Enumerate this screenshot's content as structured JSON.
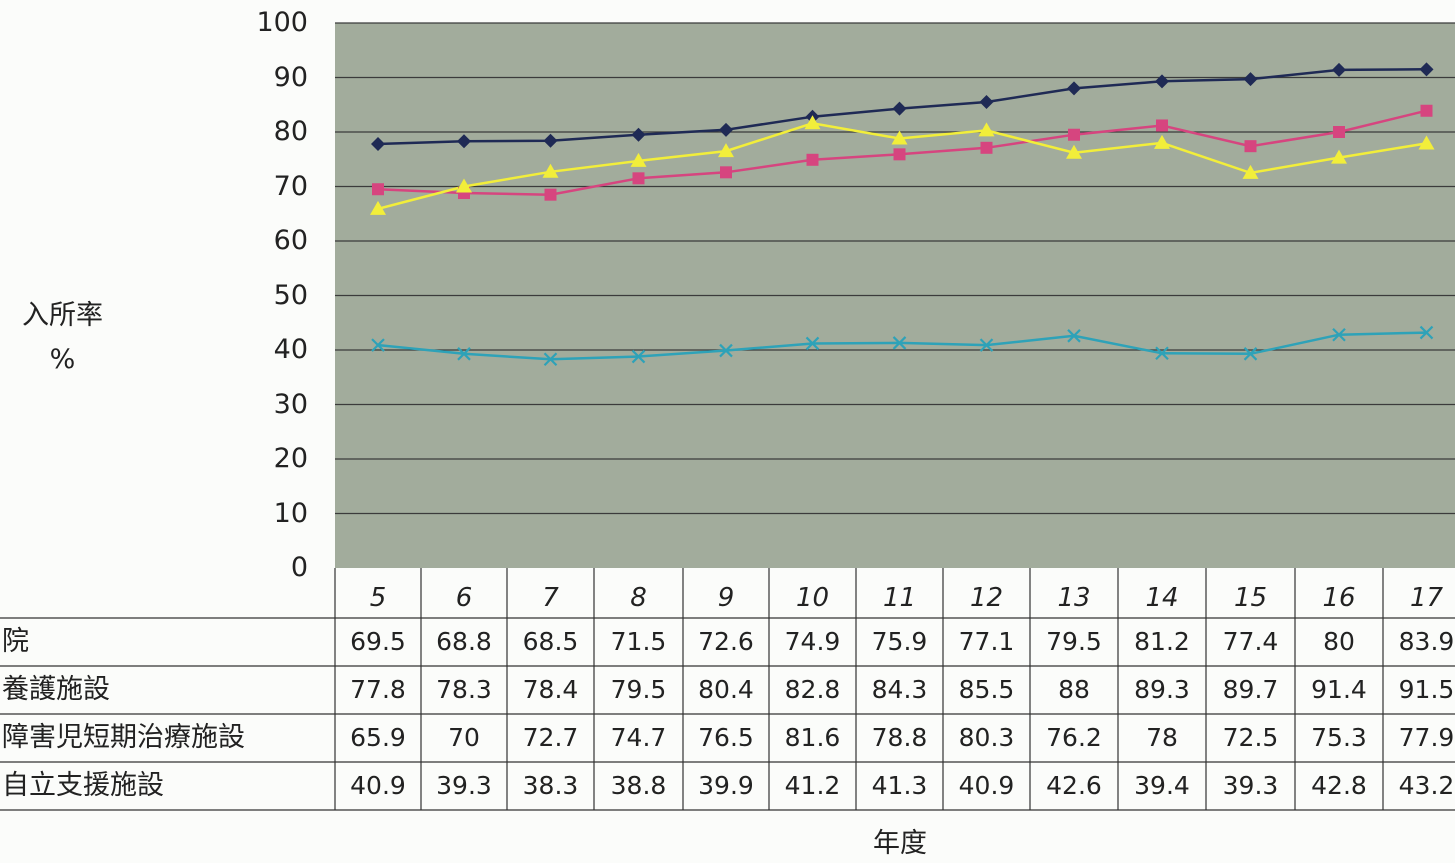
{
  "chart_data": {
    "type": "line",
    "ylabel": [
      "入所率",
      "%"
    ],
    "xlabel": "年度",
    "ylim": [
      0,
      100
    ],
    "yticks": [
      0,
      10,
      20,
      30,
      40,
      50,
      60,
      70,
      80,
      90,
      100
    ],
    "categories": [
      "5",
      "6",
      "7",
      "8",
      "9",
      "10",
      "11",
      "12",
      "13",
      "14",
      "15",
      "16",
      "17"
    ],
    "grid": true,
    "series": [
      {
        "name": "院",
        "color": "#d6457f",
        "marker": "square",
        "values": [
          69.5,
          68.8,
          68.5,
          71.5,
          72.6,
          74.9,
          75.9,
          77.1,
          79.5,
          81.2,
          77.4,
          80,
          83.9
        ],
        "labels": [
          "69.5",
          "68.8",
          "68.5",
          "71.5",
          "72.6",
          "74.9",
          "75.9",
          "77.1",
          "79.5",
          "81.2",
          "77.4",
          "80",
          "83.9"
        ]
      },
      {
        "name": "養護施設",
        "color": "#1f2a55",
        "marker": "diamond",
        "values": [
          77.8,
          78.3,
          78.4,
          79.5,
          80.4,
          82.8,
          84.3,
          85.5,
          88,
          89.3,
          89.7,
          91.4,
          91.5
        ],
        "labels": [
          "77.8",
          "78.3",
          "78.4",
          "79.5",
          "80.4",
          "82.8",
          "84.3",
          "85.5",
          "88",
          "89.3",
          "89.7",
          "91.4",
          "91.5"
        ]
      },
      {
        "name": "障害児短期治療施設",
        "color": "#f2ee3a",
        "marker": "triangle",
        "values": [
          65.9,
          70,
          72.7,
          74.7,
          76.5,
          81.6,
          78.8,
          80.3,
          76.2,
          78,
          72.5,
          75.3,
          77.9
        ],
        "labels": [
          "65.9",
          "70",
          "72.7",
          "74.7",
          "76.5",
          "81.6",
          "78.8",
          "80.3",
          "76.2",
          "78",
          "72.5",
          "75.3",
          "77.9"
        ]
      },
      {
        "name": "自立支援施設",
        "color": "#2ea2b8",
        "marker": "x",
        "values": [
          40.9,
          39.3,
          38.3,
          38.8,
          39.9,
          41.2,
          41.3,
          40.9,
          42.6,
          39.4,
          39.3,
          42.8,
          43.2
        ],
        "labels": [
          "40.9",
          "39.3",
          "38.3",
          "38.8",
          "39.9",
          "41.2",
          "41.3",
          "40.9",
          "42.6",
          "39.4",
          "39.3",
          "42.8",
          "43.2"
        ]
      }
    ]
  }
}
